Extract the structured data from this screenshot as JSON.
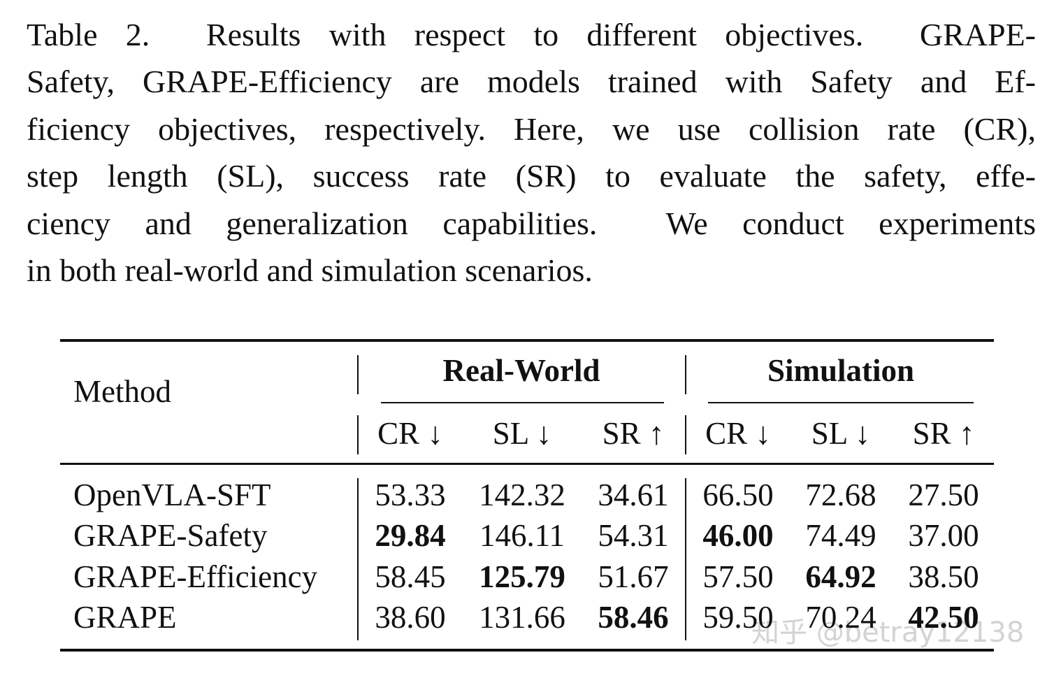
{
  "caption": {
    "lines": [
      "Table 2.  Results with respect to different objectives.  GRAPE-",
      "Safety, GRAPE-Efficiency are models trained with Safety and Ef-",
      "ficiency objectives, respectively. Here, we use collision rate (CR),",
      "step length (SL), success rate (SR) to evaluate the safety, effe-",
      "ciency and generalization capabilities.  We conduct experiments",
      "in both real-world and simulation scenarios."
    ]
  },
  "table": {
    "method_header": "Method",
    "groups": [
      "Real-World",
      "Simulation"
    ],
    "columns": [
      "CR ↓",
      "SL ↓",
      "SR ↑",
      "CR ↓",
      "SL ↓",
      "SR ↑"
    ],
    "rows": [
      [
        "OpenVLA-SFT",
        "53.33",
        "142.32",
        "34.61",
        "66.50",
        "72.68",
        "27.50"
      ],
      [
        "GRAPE-Safety",
        "29.84",
        "146.11",
        "54.31",
        "46.00",
        "74.49",
        "37.00"
      ],
      [
        "GRAPE-Efficiency",
        "58.45",
        "125.79",
        "51.67",
        "57.50",
        "64.92",
        "38.50"
      ],
      [
        "GRAPE",
        "38.60",
        "131.66",
        "58.46",
        "59.50",
        "70.24",
        "42.50"
      ]
    ],
    "bold_cells": [
      [
        1,
        1
      ],
      [
        1,
        4
      ],
      [
        2,
        2
      ],
      [
        2,
        5
      ],
      [
        3,
        3
      ],
      [
        3,
        6
      ]
    ]
  },
  "watermark": "知乎 @betray12138"
}
